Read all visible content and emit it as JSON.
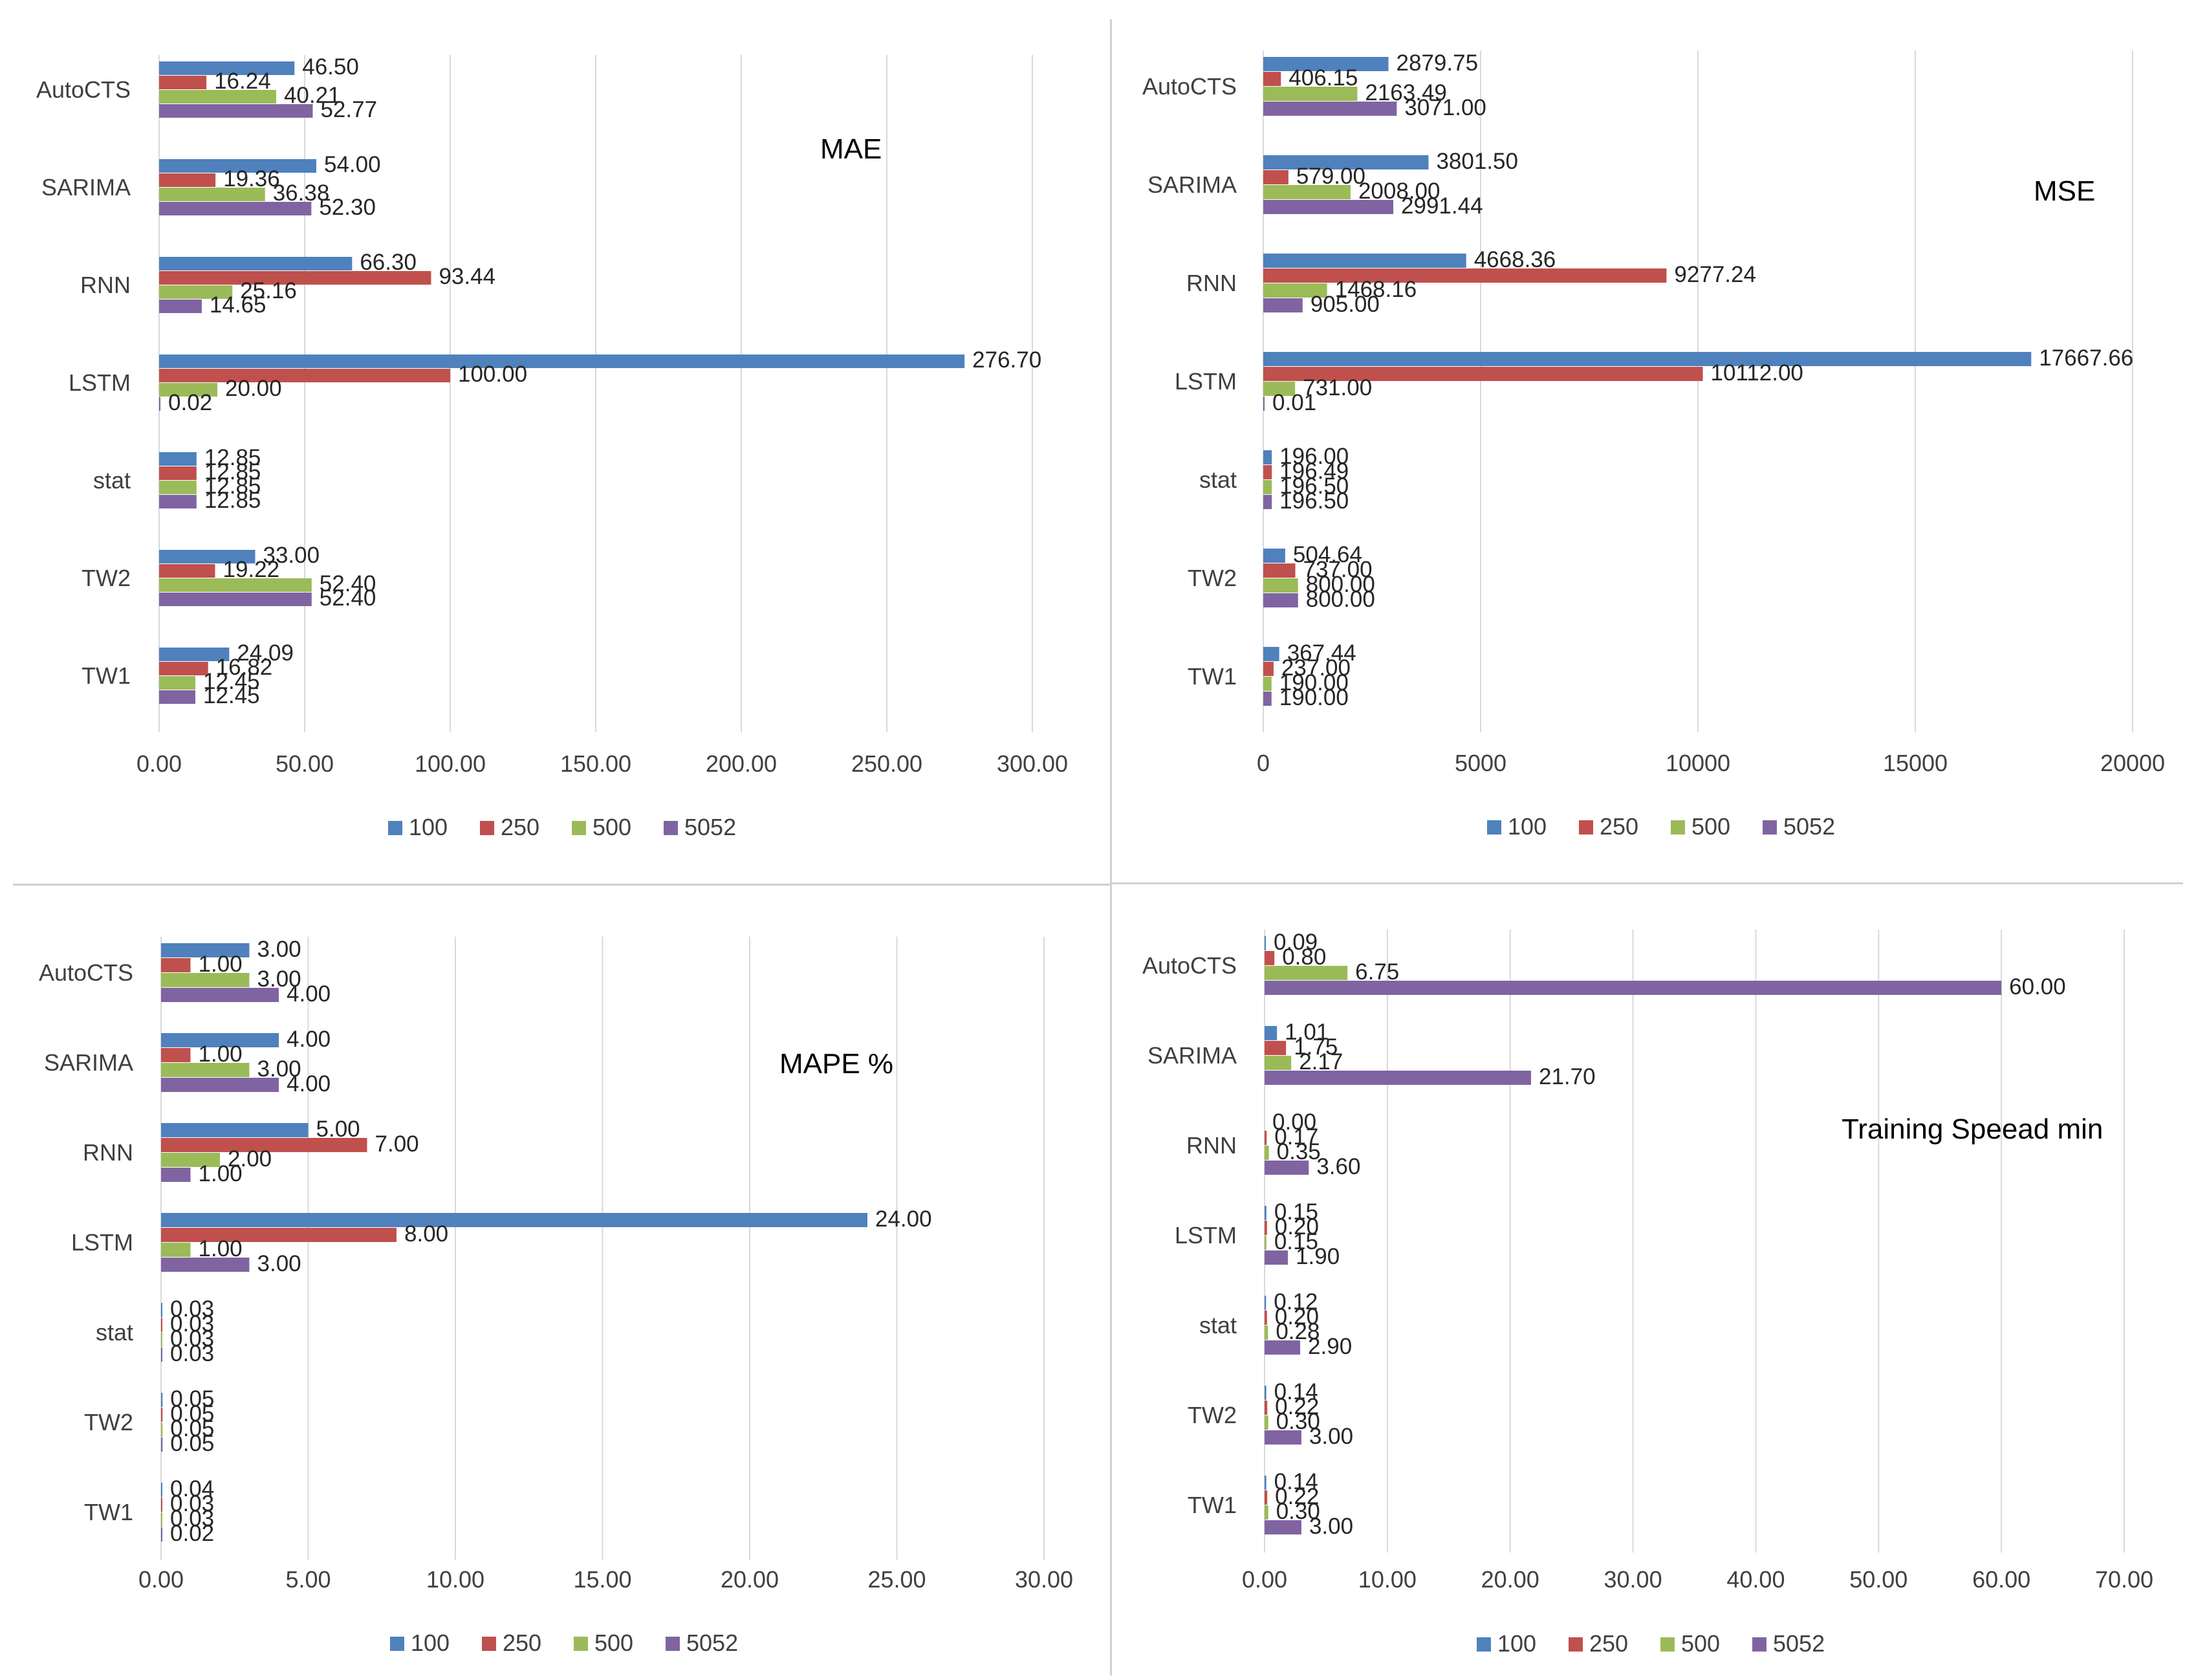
{
  "colors": {
    "s100": "#4f81bd",
    "s250": "#c0504d",
    "s500": "#9bbb59",
    "s5052": "#8064a2",
    "grid": "#d9d9d9",
    "text": "#404040"
  },
  "chart_data": [
    {
      "type": "bar",
      "orientation": "horizontal",
      "title": "MAE",
      "categories": [
        "AutoCTS",
        "SARIMA",
        "RNN",
        "LSTM",
        "stat",
        "TW2",
        "TW1"
      ],
      "series": [
        {
          "name": "100",
          "values": [
            46.5,
            54.0,
            66.3,
            276.7,
            12.85,
            33.0,
            24.09
          ]
        },
        {
          "name": "250",
          "values": [
            16.24,
            19.36,
            93.44,
            100.0,
            12.85,
            19.22,
            16.82
          ]
        },
        {
          "name": "500",
          "values": [
            40.21,
            36.38,
            25.16,
            20.0,
            12.85,
            52.4,
            12.45
          ]
        },
        {
          "name": "5052",
          "values": [
            52.77,
            52.3,
            14.65,
            0.02,
            12.85,
            52.4,
            12.45
          ]
        }
      ],
      "labels": [
        [
          "46.50",
          "54.00",
          "66.30",
          "276.70",
          "12.85",
          "33.00",
          "24.09"
        ],
        [
          "16.24",
          "19.36",
          "93.44",
          "100.00",
          "12.85",
          "19.22",
          "16.82"
        ],
        [
          "40.21",
          "36.38",
          "25.16",
          "20.00",
          "12.85",
          "52.40",
          "12.45"
        ],
        [
          "52.77",
          "52.30",
          "14.65",
          "0.02",
          "12.85",
          "52.40",
          "12.45"
        ]
      ],
      "xlim": [
        0,
        300
      ],
      "ticks": [
        "0.00",
        "50.00",
        "100.00",
        "150.00",
        "200.00",
        "250.00",
        "300.00"
      ],
      "legend": [
        "100",
        "250",
        "500",
        "5052"
      ]
    },
    {
      "type": "bar",
      "orientation": "horizontal",
      "title": "MSE",
      "categories": [
        "AutoCTS",
        "SARIMA",
        "RNN",
        "LSTM",
        "stat",
        "TW2",
        "TW1"
      ],
      "series": [
        {
          "name": "100",
          "values": [
            2879.75,
            3801.5,
            4668.36,
            17667.66,
            196.0,
            504.64,
            367.44
          ]
        },
        {
          "name": "250",
          "values": [
            406.15,
            579.0,
            9277.24,
            10112.0,
            196.49,
            737.0,
            237.0
          ]
        },
        {
          "name": "500",
          "values": [
            2163.49,
            2008.0,
            1468.16,
            731.0,
            196.5,
            800.0,
            190.0
          ]
        },
        {
          "name": "5052",
          "values": [
            3071.0,
            2991.44,
            905.0,
            0.01,
            196.5,
            800.0,
            190.0
          ]
        }
      ],
      "labels": [
        [
          "2879.75",
          "3801.50",
          "4668.36",
          "17667.66",
          "196.00",
          "504.64",
          "367.44"
        ],
        [
          "406.15",
          "579.00",
          "9277.24",
          "10112.00",
          "196.49",
          "737.00",
          "237.00"
        ],
        [
          "2163.49",
          "2008.00",
          "1468.16",
          "731.00",
          "196.50",
          "800.00",
          "190.00"
        ],
        [
          "3071.00",
          "2991.44",
          "905.00",
          "0.01",
          "196.50",
          "800.00",
          "190.00"
        ]
      ],
      "xlim": [
        0,
        20000
      ],
      "ticks": [
        "0",
        "5000",
        "10000",
        "15000",
        "20000"
      ],
      "legend": [
        "100",
        "250",
        "500",
        "5052"
      ]
    },
    {
      "type": "bar",
      "orientation": "horizontal",
      "title": "MAPE %",
      "categories": [
        "AutoCTS",
        "SARIMA",
        "RNN",
        "LSTM",
        "stat",
        "TW2",
        "TW1"
      ],
      "series": [
        {
          "name": "100",
          "values": [
            3.0,
            4.0,
            5.0,
            24.0,
            0.03,
            0.05,
            0.04
          ]
        },
        {
          "name": "250",
          "values": [
            1.0,
            1.0,
            7.0,
            8.0,
            0.03,
            0.05,
            0.03
          ]
        },
        {
          "name": "500",
          "values": [
            3.0,
            3.0,
            2.0,
            1.0,
            0.03,
            0.05,
            0.03
          ]
        },
        {
          "name": "5052",
          "values": [
            4.0,
            4.0,
            1.0,
            3.0,
            0.03,
            0.05,
            0.02
          ]
        }
      ],
      "labels": [
        [
          "3.00",
          "4.00",
          "5.00",
          "24.00",
          "0.03",
          "0.05",
          "0.04"
        ],
        [
          "1.00",
          "1.00",
          "7.00",
          "8.00",
          "0.03",
          "0.05",
          "0.03"
        ],
        [
          "3.00",
          "3.00",
          "2.00",
          "1.00",
          "0.03",
          "0.05",
          "0.03"
        ],
        [
          "4.00",
          "4.00",
          "1.00",
          "3.00",
          "0.03",
          "0.05",
          "0.02"
        ]
      ],
      "xlim": [
        0,
        30
      ],
      "ticks": [
        "0.00",
        "5.00",
        "10.00",
        "15.00",
        "20.00",
        "25.00",
        "30.00"
      ],
      "legend": [
        "100",
        "250",
        "500",
        "5052"
      ]
    },
    {
      "type": "bar",
      "orientation": "horizontal",
      "title": "Training Speead min",
      "categories": [
        "AutoCTS",
        "SARIMA",
        "RNN",
        "LSTM",
        "stat",
        "TW2",
        "TW1"
      ],
      "series": [
        {
          "name": "100",
          "values": [
            0.09,
            1.01,
            0.0,
            0.15,
            0.12,
            0.14,
            0.14
          ]
        },
        {
          "name": "250",
          "values": [
            0.8,
            1.75,
            0.17,
            0.2,
            0.2,
            0.22,
            0.22
          ]
        },
        {
          "name": "500",
          "values": [
            6.75,
            2.17,
            0.35,
            0.15,
            0.28,
            0.3,
            0.3
          ]
        },
        {
          "name": "5052",
          "values": [
            60.0,
            21.7,
            3.6,
            1.9,
            2.9,
            3.0,
            3.0
          ]
        }
      ],
      "labels": [
        [
          "0.09",
          "1.01",
          "0.00",
          "0.15",
          "0.12",
          "0.14",
          "0.14"
        ],
        [
          "0.80",
          "1.75",
          "0.17",
          "0.20",
          "0.20",
          "0.22",
          "0.22"
        ],
        [
          "6.75",
          "2.17",
          "0.35",
          "0.15",
          "0.28",
          "0.30",
          "0.30"
        ],
        [
          "60.00",
          "21.70",
          "3.60",
          "1.90",
          "2.90",
          "3.00",
          "3.00"
        ]
      ],
      "xlim": [
        0,
        70
      ],
      "ticks": [
        "0.00",
        "10.00",
        "20.00",
        "30.00",
        "40.00",
        "50.00",
        "60.00",
        "70.00"
      ],
      "legend": [
        "100",
        "250",
        "500",
        "5052"
      ]
    }
  ]
}
